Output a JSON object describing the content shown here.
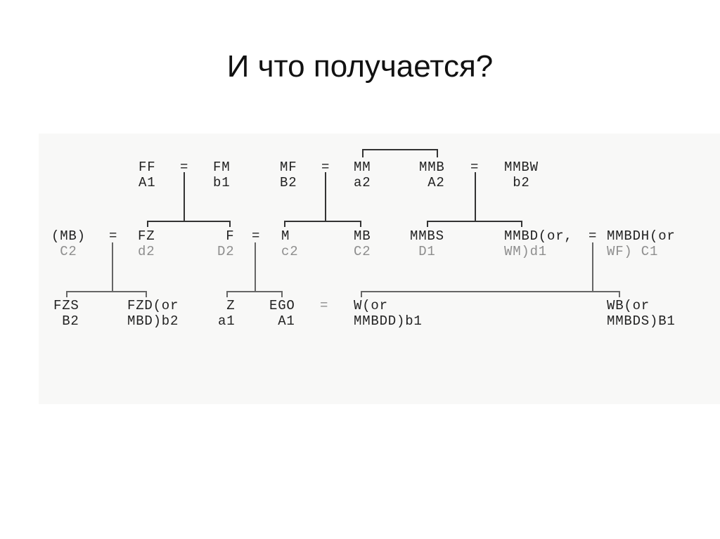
{
  "title": "И что получается?",
  "diagram": {
    "nodes": [
      {
        "id": "ff",
        "l1": "FF",
        "l2": "A1"
      },
      {
        "id": "eq1",
        "l1": "="
      },
      {
        "id": "fm",
        "l1": "FM",
        "l2": "b1"
      },
      {
        "id": "mf",
        "l1": "MF",
        "l2": "B2"
      },
      {
        "id": "eq2",
        "l1": "="
      },
      {
        "id": "mm",
        "l1": "MM",
        "l2": "a2"
      },
      {
        "id": "mmb",
        "l1": "MMB",
        "l2": "A2"
      },
      {
        "id": "eq3",
        "l1": "="
      },
      {
        "id": "mmbw",
        "l1": "MMBW",
        "l2": "b2"
      },
      {
        "id": "mb_paren",
        "l1": "(MB)",
        "l2": "C2"
      },
      {
        "id": "eq4",
        "l1": "="
      },
      {
        "id": "fz",
        "l1": "FZ",
        "l2": "d2"
      },
      {
        "id": "f",
        "l1": "F",
        "l2": "D2"
      },
      {
        "id": "eq5",
        "l1": "="
      },
      {
        "id": "m",
        "l1": "M",
        "l2": "c2"
      },
      {
        "id": "mb",
        "l1": "MB",
        "l2": "C2"
      },
      {
        "id": "mmbs",
        "l1": "MMBS",
        "l2": "D1"
      },
      {
        "id": "mmbd",
        "l1": "MMBD(or,",
        "l2": "WM)d1"
      },
      {
        "id": "eq6",
        "l1": "="
      },
      {
        "id": "mmbdh",
        "l1": "MMBDH(or",
        "l2": "WF) C1"
      },
      {
        "id": "fzs",
        "l1": "FZS",
        "l2": "B2"
      },
      {
        "id": "fzd",
        "l1": "FZD(or",
        "l2": "MBD)b2"
      },
      {
        "id": "z",
        "l1": "Z",
        "l2": "a1"
      },
      {
        "id": "ego",
        "l1": "EGO",
        "l2": "A1"
      },
      {
        "id": "eq7",
        "l1": "="
      },
      {
        "id": "w",
        "l1": "W(or",
        "l2": "MMBDD)b1"
      },
      {
        "id": "wb",
        "l1": "WB(or",
        "l2": "MMBDS)B1"
      }
    ]
  }
}
